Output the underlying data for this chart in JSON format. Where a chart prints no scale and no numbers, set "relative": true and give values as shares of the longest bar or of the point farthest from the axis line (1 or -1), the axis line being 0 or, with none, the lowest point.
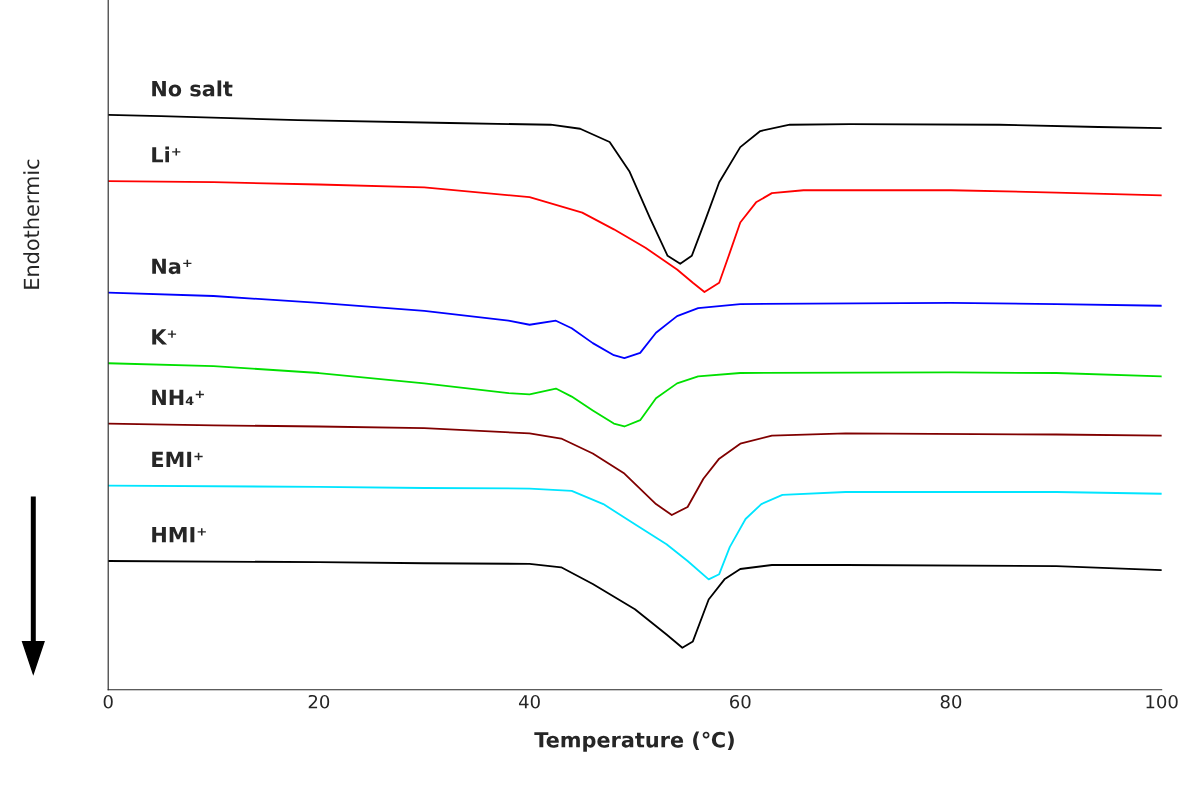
{
  "chart_data": {
    "type": "line",
    "relative": true,
    "xlabel": "Temperature (℃)",
    "ylabel": "Endothermic",
    "xlim": [
      0,
      100
    ],
    "xticks": [
      0,
      20,
      40,
      60,
      80,
      100
    ],
    "grid": false,
    "legend": false,
    "marker": "none",
    "line_style": "solid",
    "series": [
      {
        "name": "No salt",
        "color": "#000000",
        "x": [
          0,
          5,
          18,
          32.4,
          42,
          44.8,
          47.6,
          49.5,
          51.4,
          53.1,
          54.3,
          55.4,
          56.6,
          58,
          60,
          61.9,
          64.7,
          70.4,
          84.6,
          94,
          100
        ],
        "values": [
          1.0,
          0.998,
          0.991,
          0.986,
          0.983,
          0.976,
          0.953,
          0.901,
          0.822,
          0.755,
          0.741,
          0.755,
          0.813,
          0.883,
          0.944,
          0.972,
          0.983,
          0.984,
          0.983,
          0.979,
          0.977
        ]
      },
      {
        "name": "Li⁺",
        "color": "#ff0000",
        "x": [
          0,
          10,
          20,
          30,
          40,
          45,
          48,
          51,
          54,
          55.5,
          56.6,
          58,
          59,
          60,
          61.5,
          63,
          66,
          80,
          90,
          100
        ],
        "values": [
          0.885,
          0.883,
          0.879,
          0.874,
          0.857,
          0.83,
          0.801,
          0.769,
          0.731,
          0.708,
          0.692,
          0.708,
          0.76,
          0.813,
          0.848,
          0.864,
          0.869,
          0.869,
          0.865,
          0.86
        ]
      },
      {
        "name": "Na⁺",
        "color": "#0000ff",
        "x": [
          0,
          10,
          20,
          30,
          38,
          40,
          42.5,
          44,
          46,
          48,
          49,
          50.5,
          52,
          54,
          56,
          60,
          80,
          90,
          100
        ],
        "values": [
          0.691,
          0.685,
          0.673,
          0.659,
          0.642,
          0.635,
          0.642,
          0.629,
          0.603,
          0.582,
          0.577,
          0.586,
          0.621,
          0.65,
          0.664,
          0.671,
          0.673,
          0.671,
          0.668
        ]
      },
      {
        "name": "K⁺",
        "color": "#00e000",
        "x": [
          0,
          10,
          20,
          30,
          38,
          40,
          42.5,
          44,
          46,
          48,
          49,
          50.5,
          52,
          54,
          56,
          60,
          80,
          90,
          100
        ],
        "values": [
          0.568,
          0.563,
          0.551,
          0.533,
          0.516,
          0.514,
          0.524,
          0.51,
          0.486,
          0.463,
          0.458,
          0.469,
          0.507,
          0.533,
          0.545,
          0.551,
          0.552,
          0.551,
          0.545
        ]
      },
      {
        "name": "NH₄⁺",
        "color": "#800000",
        "x": [
          0,
          10,
          20,
          30,
          40,
          43,
          46,
          49,
          52,
          53.5,
          55,
          56.5,
          58,
          60,
          63,
          70,
          90,
          100
        ],
        "values": [
          0.463,
          0.46,
          0.458,
          0.455,
          0.446,
          0.437,
          0.411,
          0.376,
          0.323,
          0.304,
          0.318,
          0.367,
          0.402,
          0.428,
          0.442,
          0.446,
          0.444,
          0.442
        ]
      },
      {
        "name": "EMI⁺",
        "color": "#00e5ff",
        "x": [
          0,
          20,
          30,
          40,
          44,
          47,
          50,
          53,
          55,
          57,
          58,
          59,
          60.5,
          62,
          64,
          70,
          90,
          100
        ],
        "values": [
          0.355,
          0.353,
          0.351,
          0.35,
          0.346,
          0.323,
          0.288,
          0.253,
          0.224,
          0.192,
          0.201,
          0.248,
          0.297,
          0.323,
          0.339,
          0.344,
          0.344,
          0.341
        ]
      },
      {
        "name": "HMI⁺",
        "color": "#000000",
        "x": [
          0,
          20,
          30,
          40,
          43,
          46,
          50,
          53,
          54.5,
          55.5,
          57,
          58.5,
          60,
          63,
          70,
          90,
          100
        ],
        "values": [
          0.224,
          0.222,
          0.22,
          0.219,
          0.213,
          0.184,
          0.14,
          0.096,
          0.073,
          0.084,
          0.157,
          0.192,
          0.21,
          0.217,
          0.217,
          0.215,
          0.208
        ]
      }
    ]
  }
}
